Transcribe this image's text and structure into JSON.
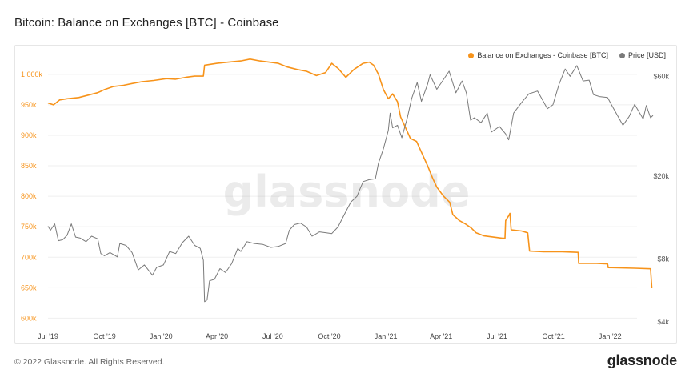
{
  "page": {
    "title": "Bitcoin: Balance on Exchanges [BTC] - Coinbase",
    "copyright": "© 2022 Glassnode. All Rights Reserved.",
    "brand": "glassnode",
    "watermark": "glassnode"
  },
  "legend": {
    "items": [
      {
        "label": "Balance on Exchanges - Coinbase [BTC]",
        "color": "#f7931a"
      },
      {
        "label": "Price [USD]",
        "color": "#7a7a7a"
      }
    ],
    "placement": "top-right"
  },
  "chart_data": {
    "type": "line",
    "title": "Bitcoin: Balance on Exchanges [BTC] - Coinbase",
    "x_tick_labels": [
      "Jul '19",
      "Oct '19",
      "Jan '20",
      "Apr '20",
      "Jul '20",
      "Oct '20",
      "Jan '21",
      "Apr '21",
      "Jul '21",
      "Oct '21",
      "Jan '22"
    ],
    "y_left": {
      "ticks": [
        "600k",
        "650k",
        "700k",
        "750k",
        "800k",
        "850k",
        "900k",
        "950k",
        "1 000k"
      ],
      "range": [
        590000,
        1030000
      ],
      "color": "#f7931a"
    },
    "y_right": {
      "ticks": [
        "$4k",
        "$8k",
        "$20k",
        "$60k"
      ],
      "scale": "log",
      "range": [
        3900,
        75000
      ],
      "color": "#555555"
    },
    "grid": "horizontal",
    "series": [
      {
        "name": "Balance on Exchanges - Coinbase [BTC]",
        "axis": "left",
        "color": "#f7931a",
        "points": [
          [
            "2019-07-01",
            953000
          ],
          [
            "2019-07-10",
            950000
          ],
          [
            "2019-07-20",
            958000
          ],
          [
            "2019-08-01",
            960000
          ],
          [
            "2019-08-20",
            962000
          ],
          [
            "2019-09-05",
            966000
          ],
          [
            "2019-09-20",
            970000
          ],
          [
            "2019-10-01",
            975000
          ],
          [
            "2019-10-15",
            980000
          ],
          [
            "2019-11-01",
            982000
          ],
          [
            "2019-11-15",
            985000
          ],
          [
            "2019-12-01",
            988000
          ],
          [
            "2019-12-20",
            990000
          ],
          [
            "2020-01-10",
            993000
          ],
          [
            "2020-01-25",
            992000
          ],
          [
            "2020-02-10",
            995000
          ],
          [
            "2020-02-25",
            997000
          ],
          [
            "2020-03-10",
            997000
          ],
          [
            "2020-03-12",
            1015000
          ],
          [
            "2020-04-01",
            1018000
          ],
          [
            "2020-04-20",
            1020000
          ],
          [
            "2020-05-10",
            1022000
          ],
          [
            "2020-05-25",
            1025000
          ],
          [
            "2020-06-10",
            1022000
          ],
          [
            "2020-06-25",
            1020000
          ],
          [
            "2020-07-10",
            1018000
          ],
          [
            "2020-07-25",
            1012000
          ],
          [
            "2020-08-10",
            1008000
          ],
          [
            "2020-08-25",
            1005000
          ],
          [
            "2020-09-10",
            998000
          ],
          [
            "2020-09-25",
            1003000
          ],
          [
            "2020-10-05",
            1018000
          ],
          [
            "2020-10-15",
            1010000
          ],
          [
            "2020-10-28",
            995000
          ],
          [
            "2020-11-10",
            1008000
          ],
          [
            "2020-11-25",
            1018000
          ],
          [
            "2020-12-05",
            1020000
          ],
          [
            "2020-12-12",
            1015000
          ],
          [
            "2020-12-20",
            1000000
          ],
          [
            "2020-12-28",
            975000
          ],
          [
            "2021-01-05",
            960000
          ],
          [
            "2021-01-12",
            968000
          ],
          [
            "2021-01-20",
            955000
          ],
          [
            "2021-01-25",
            930000
          ],
          [
            "2021-02-01",
            915000
          ],
          [
            "2021-02-10",
            895000
          ],
          [
            "2021-02-20",
            890000
          ],
          [
            "2021-03-01",
            870000
          ],
          [
            "2021-03-10",
            850000
          ],
          [
            "2021-03-18",
            830000
          ],
          [
            "2021-03-25",
            815000
          ],
          [
            "2021-04-05",
            800000
          ],
          [
            "2021-04-15",
            790000
          ],
          [
            "2021-04-20",
            770000
          ],
          [
            "2021-05-01",
            760000
          ],
          [
            "2021-05-10",
            755000
          ],
          [
            "2021-05-20",
            748000
          ],
          [
            "2021-05-28",
            740000
          ],
          [
            "2021-06-10",
            735000
          ],
          [
            "2021-06-25",
            733000
          ],
          [
            "2021-07-10",
            731000
          ],
          [
            "2021-07-14",
            731000
          ],
          [
            "2021-07-15",
            760000
          ],
          [
            "2021-07-20",
            768000
          ],
          [
            "2021-07-22",
            772000
          ],
          [
            "2021-07-24",
            745000
          ],
          [
            "2021-08-10",
            743000
          ],
          [
            "2021-08-20",
            740000
          ],
          [
            "2021-08-23",
            710000
          ],
          [
            "2021-09-15",
            709000
          ],
          [
            "2021-10-15",
            709000
          ],
          [
            "2021-11-10",
            708000
          ],
          [
            "2021-11-11",
            690000
          ],
          [
            "2021-12-10",
            690000
          ],
          [
            "2021-12-28",
            689000
          ],
          [
            "2021-12-29",
            683000
          ],
          [
            "2022-02-10",
            682000
          ],
          [
            "2022-03-08",
            681000
          ],
          [
            "2022-03-10",
            650000
          ]
        ]
      },
      {
        "name": "Price [USD]",
        "axis": "right",
        "color": "#7a7a7a",
        "points": [
          [
            "2019-07-01",
            11500
          ],
          [
            "2019-07-05",
            11000
          ],
          [
            "2019-07-12",
            11800
          ],
          [
            "2019-07-18",
            9800
          ],
          [
            "2019-07-25",
            9900
          ],
          [
            "2019-08-01",
            10400
          ],
          [
            "2019-08-08",
            11800
          ],
          [
            "2019-08-15",
            10200
          ],
          [
            "2019-08-22",
            10100
          ],
          [
            "2019-09-01",
            9700
          ],
          [
            "2019-09-10",
            10300
          ],
          [
            "2019-09-20",
            10000
          ],
          [
            "2019-09-25",
            8500
          ],
          [
            "2019-10-01",
            8300
          ],
          [
            "2019-10-10",
            8600
          ],
          [
            "2019-10-22",
            8200
          ],
          [
            "2019-10-26",
            9500
          ],
          [
            "2019-11-05",
            9300
          ],
          [
            "2019-11-15",
            8600
          ],
          [
            "2019-11-25",
            7100
          ],
          [
            "2019-12-05",
            7500
          ],
          [
            "2019-12-18",
            6700
          ],
          [
            "2019-12-25",
            7300
          ],
          [
            "2020-01-05",
            7500
          ],
          [
            "2020-01-15",
            8700
          ],
          [
            "2020-01-25",
            8500
          ],
          [
            "2020-02-05",
            9600
          ],
          [
            "2020-02-15",
            10300
          ],
          [
            "2020-02-25",
            9300
          ],
          [
            "2020-03-05",
            9000
          ],
          [
            "2020-03-10",
            7900
          ],
          [
            "2020-03-12",
            5000
          ],
          [
            "2020-03-16",
            5100
          ],
          [
            "2020-03-20",
            6300
          ],
          [
            "2020-03-28",
            6400
          ],
          [
            "2020-04-06",
            7200
          ],
          [
            "2020-04-15",
            6900
          ],
          [
            "2020-04-25",
            7600
          ],
          [
            "2020-05-05",
            9000
          ],
          [
            "2020-05-10",
            8700
          ],
          [
            "2020-05-20",
            9700
          ],
          [
            "2020-06-01",
            9500
          ],
          [
            "2020-06-15",
            9400
          ],
          [
            "2020-06-28",
            9100
          ],
          [
            "2020-07-10",
            9200
          ],
          [
            "2020-07-22",
            9500
          ],
          [
            "2020-07-28",
            11000
          ],
          [
            "2020-08-05",
            11700
          ],
          [
            "2020-08-15",
            11900
          ],
          [
            "2020-08-25",
            11400
          ],
          [
            "2020-09-03",
            10300
          ],
          [
            "2020-09-15",
            10800
          ],
          [
            "2020-09-25",
            10700
          ],
          [
            "2020-10-05",
            10600
          ],
          [
            "2020-10-15",
            11400
          ],
          [
            "2020-10-25",
            13000
          ],
          [
            "2020-11-05",
            15000
          ],
          [
            "2020-11-15",
            16000
          ],
          [
            "2020-11-25",
            18800
          ],
          [
            "2020-12-05",
            19200
          ],
          [
            "2020-12-15",
            19400
          ],
          [
            "2020-12-20",
            23000
          ],
          [
            "2020-12-28",
            27000
          ],
          [
            "2021-01-05",
            33000
          ],
          [
            "2021-01-08",
            40000
          ],
          [
            "2021-01-12",
            34000
          ],
          [
            "2021-01-20",
            35000
          ],
          [
            "2021-01-27",
            30500
          ],
          [
            "2021-02-05",
            38000
          ],
          [
            "2021-02-12",
            47000
          ],
          [
            "2021-02-21",
            56000
          ],
          [
            "2021-02-28",
            45500
          ],
          [
            "2021-03-10",
            55000
          ],
          [
            "2021-03-14",
            61000
          ],
          [
            "2021-03-25",
            52000
          ],
          [
            "2021-04-05",
            58000
          ],
          [
            "2021-04-14",
            63500
          ],
          [
            "2021-04-25",
            50000
          ],
          [
            "2021-05-05",
            57000
          ],
          [
            "2021-05-12",
            50000
          ],
          [
            "2021-05-19",
            37000
          ],
          [
            "2021-05-25",
            38000
          ],
          [
            "2021-06-05",
            36000
          ],
          [
            "2021-06-15",
            40000
          ],
          [
            "2021-06-22",
            32500
          ],
          [
            "2021-07-05",
            34500
          ],
          [
            "2021-07-15",
            31800
          ],
          [
            "2021-07-20",
            29800
          ],
          [
            "2021-07-28",
            40000
          ],
          [
            "2021-08-10",
            45000
          ],
          [
            "2021-08-22",
            49500
          ],
          [
            "2021-09-05",
            51000
          ],
          [
            "2021-09-21",
            42000
          ],
          [
            "2021-09-30",
            43800
          ],
          [
            "2021-10-10",
            55000
          ],
          [
            "2021-10-20",
            65000
          ],
          [
            "2021-10-28",
            60000
          ],
          [
            "2021-11-08",
            67500
          ],
          [
            "2021-11-18",
            57000
          ],
          [
            "2021-11-28",
            57500
          ],
          [
            "2021-12-05",
            49000
          ],
          [
            "2021-12-15",
            48000
          ],
          [
            "2021-12-28",
            47500
          ],
          [
            "2022-01-05",
            43000
          ],
          [
            "2022-01-22",
            35000
          ],
          [
            "2022-02-01",
            38500
          ],
          [
            "2022-02-10",
            44000
          ],
          [
            "2022-02-24",
            37500
          ],
          [
            "2022-03-01",
            43500
          ],
          [
            "2022-03-08",
            38000
          ],
          [
            "2022-03-12",
            39000
          ]
        ]
      }
    ]
  }
}
